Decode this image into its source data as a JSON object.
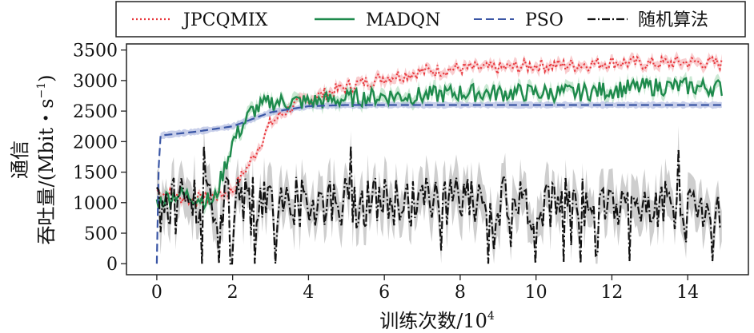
{
  "chart_data": {
    "type": "line",
    "title": "",
    "xlabel": "训练次数/10",
    "xlabel_exponent": "4",
    "ylabel_line1": "通信",
    "ylabel_line2": "吞吐量/(Mbit・s",
    "ylabel_exponent": "−1",
    "ylabel_close": ")",
    "xlim": [
      -0.8,
      15.6
    ],
    "ylim": [
      -180,
      3600
    ],
    "x_ticks": [
      0,
      2,
      4,
      6,
      8,
      10,
      12,
      14
    ],
    "y_ticks": [
      0,
      500,
      1000,
      1500,
      2000,
      2500,
      3000,
      3500
    ],
    "grid": false,
    "legend_position": "top",
    "x_max": 14.9,
    "series": [
      {
        "name": "JPCQMIX",
        "color": "#e8373c",
        "band_color": "#f4a3a6",
        "dash": "2,3",
        "keypoints": [
          [
            0,
            1200
          ],
          [
            0.5,
            1100
          ],
          [
            1,
            1050
          ],
          [
            1.5,
            1100
          ],
          [
            2,
            1200
          ],
          [
            2.5,
            1700
          ],
          [
            3,
            2300
          ],
          [
            3.5,
            2550
          ],
          [
            4,
            2700
          ],
          [
            5,
            2900
          ],
          [
            6,
            3050
          ],
          [
            7,
            3150
          ],
          [
            8,
            3200
          ],
          [
            9,
            3200
          ],
          [
            10,
            3250
          ],
          [
            11,
            3250
          ],
          [
            12,
            3300
          ],
          [
            13,
            3280
          ],
          [
            14,
            3300
          ],
          [
            14.9,
            3280
          ]
        ],
        "noise": 110,
        "band": 70
      },
      {
        "name": "MADQN",
        "color": "#1e8a4c",
        "band_color": "#9fd6ae",
        "dash": "",
        "keypoints": [
          [
            0,
            1000
          ],
          [
            0.5,
            1150
          ],
          [
            1,
            1100
          ],
          [
            1.5,
            1000
          ],
          [
            2,
            2000
          ],
          [
            2.5,
            2500
          ],
          [
            3,
            2650
          ],
          [
            3.5,
            2650
          ],
          [
            4,
            2650
          ],
          [
            5,
            2700
          ],
          [
            6,
            2750
          ],
          [
            7,
            2750
          ],
          [
            8,
            2800
          ],
          [
            9,
            2800
          ],
          [
            10,
            2800
          ],
          [
            11,
            2800
          ],
          [
            12,
            2850
          ],
          [
            13,
            2900
          ],
          [
            14,
            2900
          ],
          [
            14.9,
            2880
          ]
        ],
        "noise": 150,
        "band": 90
      },
      {
        "name": "PSO",
        "color": "#3a56a5",
        "band_color": "#9aa8d8",
        "dash": "10,5",
        "keypoints": [
          [
            0,
            0
          ],
          [
            0.05,
            1600
          ],
          [
            0.1,
            2100
          ],
          [
            1,
            2160
          ],
          [
            2,
            2250
          ],
          [
            3,
            2480
          ],
          [
            4,
            2580
          ],
          [
            5,
            2600
          ],
          [
            6,
            2600
          ],
          [
            10,
            2600
          ],
          [
            14.9,
            2600
          ]
        ],
        "noise": 5,
        "band": 50
      },
      {
        "name": "随机算法",
        "color": "#111111",
        "band_color": "#bdbdbd",
        "dash": "10,3,2,3",
        "keypoints": [
          [
            0,
            1000
          ],
          [
            2,
            1000
          ],
          [
            4,
            1000
          ],
          [
            6,
            1000
          ],
          [
            8,
            1050
          ],
          [
            10,
            1000
          ],
          [
            12,
            1000
          ],
          [
            14,
            950
          ],
          [
            14.9,
            900
          ]
        ],
        "noise": 420,
        "band": 320
      }
    ]
  }
}
